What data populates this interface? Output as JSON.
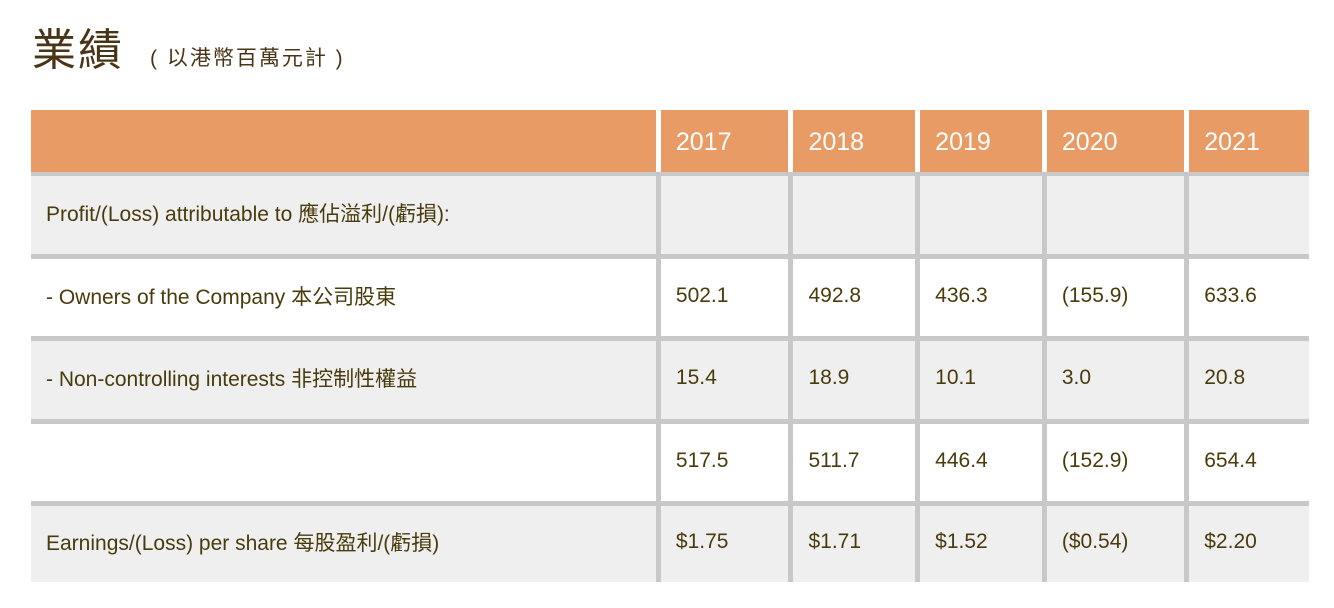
{
  "title": {
    "main": "業績",
    "subtitle": "( 以港幣百萬元計 )"
  },
  "table": {
    "years": [
      "2017",
      "2018",
      "2019",
      "2020",
      "2021"
    ],
    "rows": [
      {
        "label": "Profit/(Loss) attributable to 應佔溢利/(虧損):",
        "values": [
          "",
          "",
          "",
          "",
          ""
        ]
      },
      {
        "label": "- Owners of the Company 本公司股東",
        "values": [
          "502.1",
          "492.8",
          "436.3",
          "(155.9)",
          "633.6"
        ]
      },
      {
        "label": "- Non-controlling interests 非控制性權益",
        "values": [
          "15.4",
          "18.9",
          "10.1",
          "3.0",
          "20.8"
        ]
      },
      {
        "label": "",
        "values": [
          "517.5",
          "511.7",
          "446.4",
          "(152.9)",
          "654.4"
        ]
      },
      {
        "label": "Earnings/(Loss) per share 每股盈利/(虧損)",
        "values": [
          "$1.75",
          "$1.71",
          "$1.52",
          "($0.54)",
          "$2.20"
        ]
      }
    ]
  },
  "colors": {
    "header_bg": "#e89b64",
    "header_text": "#ffffff",
    "row_grey": "#efefef",
    "row_white": "#ffffff",
    "separator": "#c8c8c8",
    "text": "#4a3b0c"
  }
}
